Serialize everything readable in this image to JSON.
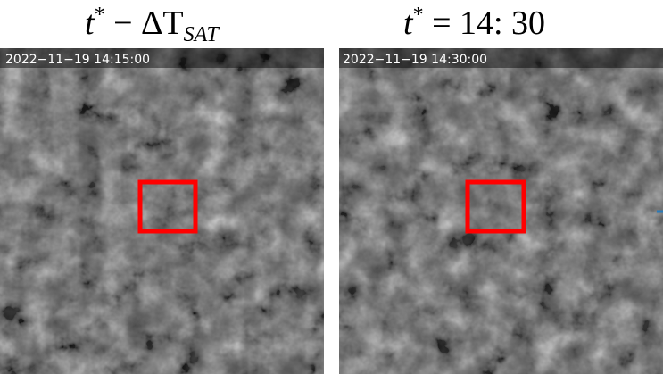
{
  "panels": [
    {
      "title": {
        "base": "t",
        "sup": "*",
        "rest": " −  ΔT",
        "sub": "SAT"
      },
      "timestamp": "2022−11−19  14:15:00"
    },
    {
      "title": {
        "base": "t",
        "sup": "*",
        "rest": " = 14: 30",
        "sub": ""
      },
      "timestamp": "2022−11−19  14:30:00"
    }
  ]
}
